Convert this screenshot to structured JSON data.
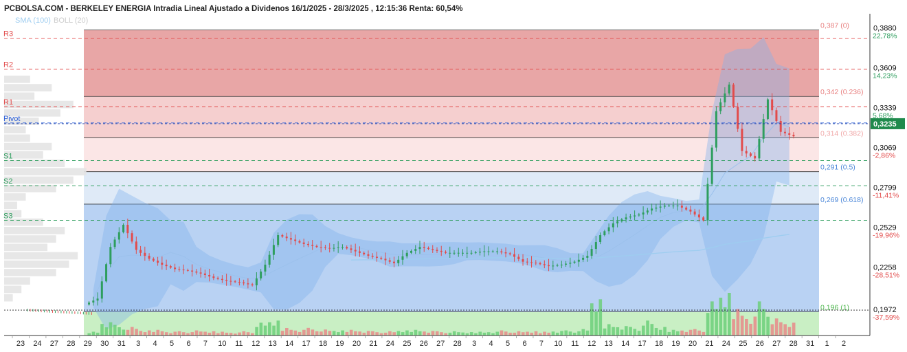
{
  "header": {
    "title": "PCBOLSA.COM - BERKELEY ENERGIA Intradia Lineal Ajustado a Dividenos 16/1/2025 - 28/3/2025 , 12:15:36 Renta: 60,54%",
    "indicators": [
      {
        "label": "SMA (100)",
        "color": "#9ecdf0"
      },
      {
        "label": "BOLL (20)",
        "color": "#cccccc"
      }
    ]
  },
  "chart_data": {
    "type": "candlestick",
    "ylim": [
      0.18,
      0.398
    ],
    "y_ticks": [
      {
        "value": 0.388,
        "label": "0,3880",
        "pct": "22,78%",
        "pct_color": "#2e9e5e"
      },
      {
        "value": 0.3609,
        "label": "0,3609",
        "pct": "14,23%",
        "pct_color": "#2e9e5e"
      },
      {
        "value": 0.3339,
        "label": "0,3339",
        "pct": "5,68%",
        "pct_color": "#2e9e5e"
      },
      {
        "value": 0.3069,
        "label": "0,3069",
        "pct": "-2,86%",
        "pct_color": "#e24b4b"
      },
      {
        "value": 0.2799,
        "label": "0,2799",
        "pct": "-11,41%",
        "pct_color": "#e24b4b"
      },
      {
        "value": 0.2529,
        "label": "0,2529",
        "pct": "-19,96%",
        "pct_color": "#e24b4b"
      },
      {
        "value": 0.2258,
        "label": "0,2258",
        "pct": "-28,51%",
        "pct_color": "#e24b4b"
      },
      {
        "value": 0.1972,
        "label": "0,1972",
        "pct": "-37,59%",
        "pct_color": "#e24b4b"
      }
    ],
    "current_price": {
      "value": 0.3235,
      "label": "0,3235"
    },
    "pivots": [
      {
        "name": "R3",
        "value": 0.3815,
        "color": "#e24b4b"
      },
      {
        "name": "R2",
        "value": 0.3605,
        "color": "#e24b4b"
      },
      {
        "name": "R1",
        "value": 0.335,
        "color": "#e24b4b"
      },
      {
        "name": "Pivot",
        "value": 0.324,
        "color": "#2b5fd9"
      },
      {
        "name": "S1",
        "value": 0.2985,
        "color": "#2e9e5e"
      },
      {
        "name": "S2",
        "value": 0.2815,
        "color": "#2e9e5e"
      },
      {
        "name": "S3",
        "value": 0.258,
        "color": "#2e9e5e"
      }
    ],
    "fibonacci": [
      {
        "value": 0.387,
        "label": "0,387 (0)",
        "color": "#e88080"
      },
      {
        "value": 0.342,
        "label": "0,342 (0.236)",
        "color": "#e88080"
      },
      {
        "value": 0.314,
        "label": "0,314 (0.382)",
        "color": "#f0a8a8"
      },
      {
        "value": 0.291,
        "label": "0,291 (0.5)",
        "color": "#4a86d8"
      },
      {
        "value": 0.269,
        "label": "0,269 (0.618)",
        "color": "#4a86d8"
      },
      {
        "value": 0.196,
        "label": "0,196 (1)",
        "color": "#4fb84f"
      }
    ],
    "x_labels": [
      "23",
      "24",
      "27",
      "28",
      "29",
      "30",
      "31",
      "3",
      "4",
      "5",
      "6",
      "7",
      "10",
      "11",
      "12",
      "13",
      "14",
      "17",
      "18",
      "19",
      "20",
      "21",
      "24",
      "25",
      "26",
      "27",
      "28",
      "3",
      "4",
      "5",
      "6",
      "7",
      "10",
      "11",
      "12",
      "13",
      "14",
      "17",
      "18",
      "19",
      "20",
      "21",
      "24",
      "25",
      "26",
      "27",
      "28",
      "31",
      "1",
      "2"
    ],
    "candles_first_label": 4,
    "candles_last_label": 46,
    "daily_closes": [
      0.205,
      0.24,
      0.255,
      0.238,
      0.232,
      0.228,
      0.225,
      0.224,
      0.222,
      0.219,
      0.217,
      0.216,
      0.214,
      0.228,
      0.248,
      0.245,
      0.242,
      0.24,
      0.239,
      0.24,
      0.237,
      0.234,
      0.232,
      0.229,
      0.236,
      0.24,
      0.238,
      0.236,
      0.236,
      0.236,
      0.237,
      0.237,
      0.235,
      0.23,
      0.229,
      0.227,
      0.228,
      0.23,
      0.234,
      0.248,
      0.256,
      0.26,
      0.262,
      0.266,
      0.268,
      0.268,
      0.264,
      0.258,
      0.332,
      0.35,
      0.305,
      0.3,
      0.34,
      0.318,
      0.315
    ],
    "volumes": [
      0.1,
      0.35,
      0.25,
      0.2,
      0.12,
      0.15,
      0.1,
      0.1,
      0.12,
      0.1,
      0.1,
      0.08,
      0.1,
      0.3,
      0.35,
      0.2,
      0.15,
      0.18,
      0.14,
      0.12,
      0.15,
      0.12,
      0.1,
      0.1,
      0.12,
      0.15,
      0.12,
      0.1,
      0.1,
      0.08,
      0.1,
      0.1,
      0.12,
      0.1,
      0.1,
      0.1,
      0.12,
      0.12,
      0.15,
      0.85,
      0.3,
      0.25,
      0.2,
      0.35,
      0.2,
      0.15,
      0.15,
      0.15,
      0.8,
      1.0,
      0.7,
      0.5,
      0.8,
      0.4,
      0.3
    ],
    "volume_profile": [
      0.3,
      0.55,
      0.35,
      0.8,
      0.65,
      0.4,
      0.25,
      0.3,
      0.55,
      0.45,
      0.7,
      0.95,
      0.8,
      0.6,
      0.25,
      0.15,
      0.2,
      0.45,
      0.7,
      0.6,
      0.5,
      0.85,
      0.75,
      0.6,
      0.3,
      0.2,
      0.1
    ],
    "colors": {
      "up": "#2e9e5e",
      "down": "#e24b4b",
      "sma": "#9ecdf0",
      "boll": "#6aa8e0"
    }
  }
}
